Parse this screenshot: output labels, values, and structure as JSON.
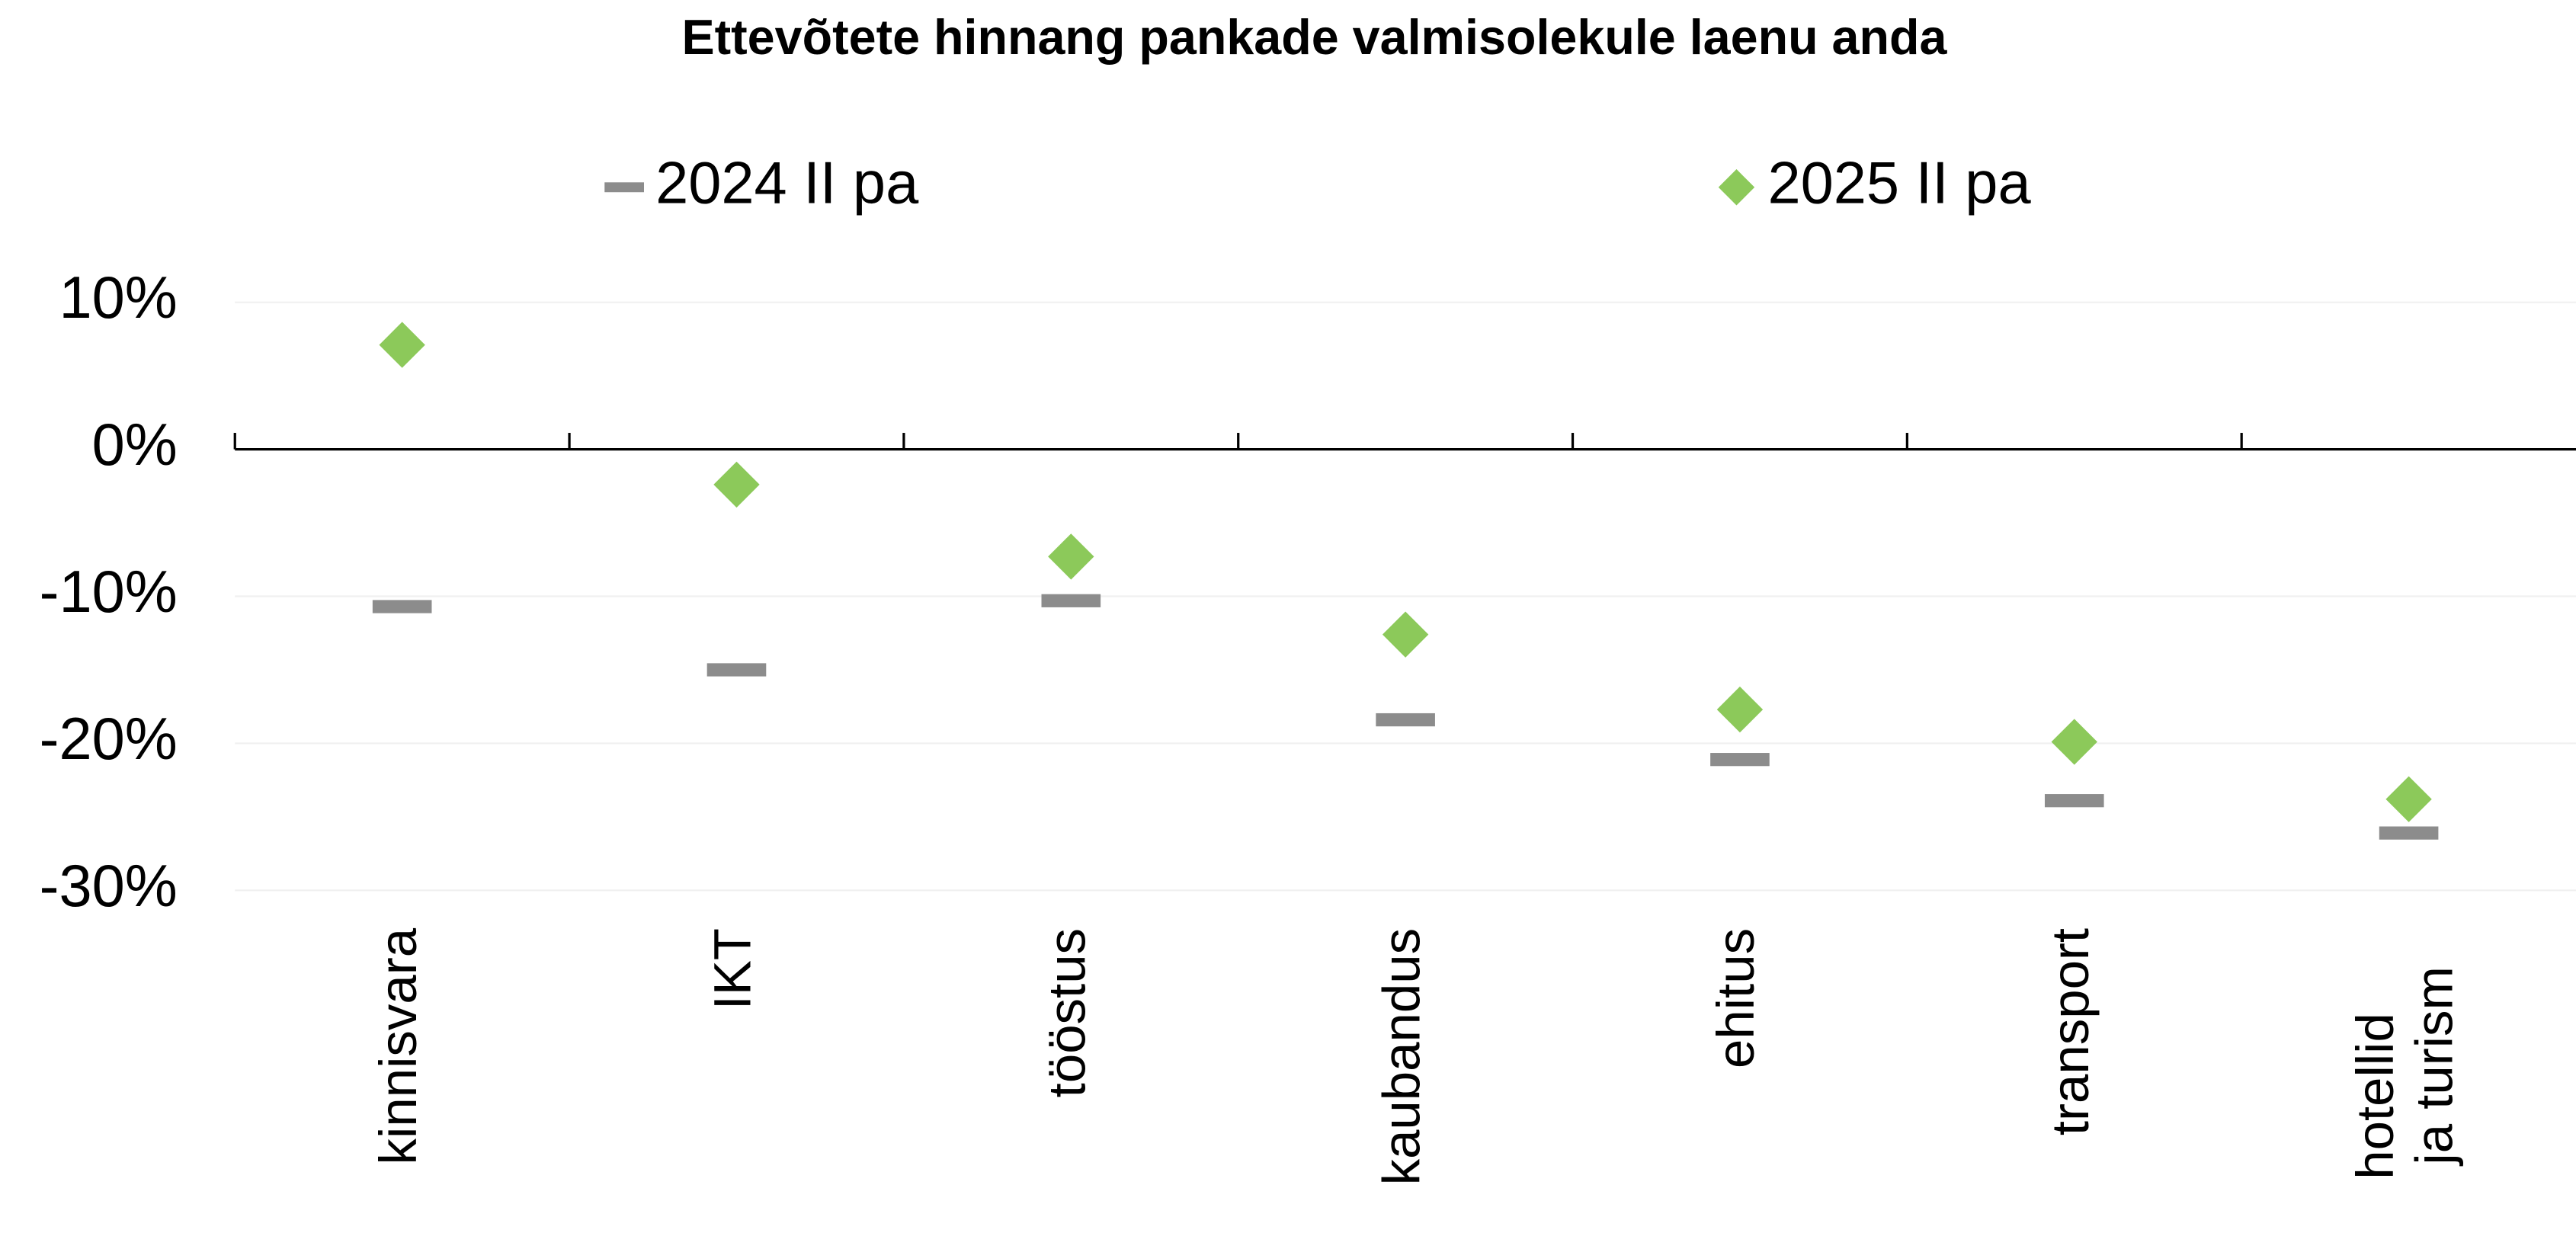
{
  "chart_data": {
    "type": "scatter",
    "title": "Ettevõtete hinnang pankade valmisolekule laenu anda",
    "categories": [
      "kinnisvara",
      "IKT",
      "tööstus",
      "kaubandus",
      "ehitus",
      "transport",
      "hotellid ja turism"
    ],
    "series": [
      {
        "name": "2024 II pa",
        "color": "#8c8c8c",
        "marker": "dash",
        "values": [
          -10.7,
          -15,
          -10.3,
          -18.4,
          -21.1,
          -23.9,
          -26.1
        ]
      },
      {
        "name": "2025 II pa",
        "color": "#8cc95a",
        "marker": "diamond",
        "values": [
          7.1,
          -2.4,
          -7.3,
          -12.6,
          -17.7,
          -19.9,
          -23.8
        ]
      }
    ],
    "ylim": [
      -30,
      10
    ],
    "yticks": [
      {
        "value": 10,
        "label": "10%"
      },
      {
        "value": 0,
        "label": "0%"
      },
      {
        "value": -10,
        "label": "-10%"
      },
      {
        "value": -20,
        "label": "-20%"
      },
      {
        "value": -30,
        "label": "-30%"
      }
    ],
    "grid": true,
    "legend": "top"
  }
}
